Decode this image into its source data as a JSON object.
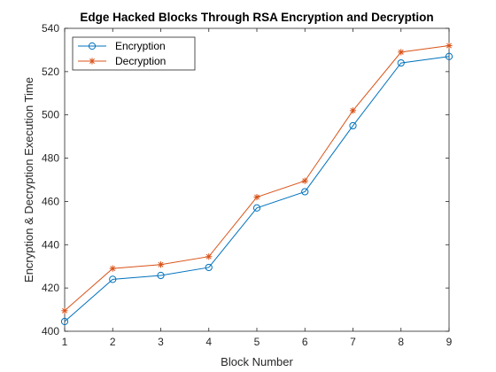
{
  "chart_data": {
    "type": "line",
    "title": "Edge Hacked Blocks Through RSA Encryption and Decryption",
    "xlabel": "Block Number",
    "ylabel": "Encryption & Decryption Execution Time",
    "x": [
      1,
      2,
      3,
      4,
      5,
      6,
      7,
      8,
      9
    ],
    "xlim": [
      1,
      9
    ],
    "ylim": [
      400,
      540
    ],
    "xticks": [
      1,
      2,
      3,
      4,
      5,
      6,
      7,
      8,
      9
    ],
    "yticks": [
      400,
      420,
      440,
      460,
      480,
      500,
      520,
      540
    ],
    "grid": false,
    "legend_position": "top-left",
    "series": [
      {
        "name": "Encryption",
        "marker": "circle",
        "color": "#0072BD",
        "values": [
          404.5,
          424,
          425.8,
          429.5,
          457,
          464.5,
          495,
          524,
          527
        ]
      },
      {
        "name": "Decryption",
        "marker": "asterisk",
        "color": "#D95319",
        "values": [
          409.5,
          429,
          430.8,
          434.5,
          462,
          469.5,
          502,
          529,
          532
        ]
      }
    ]
  }
}
